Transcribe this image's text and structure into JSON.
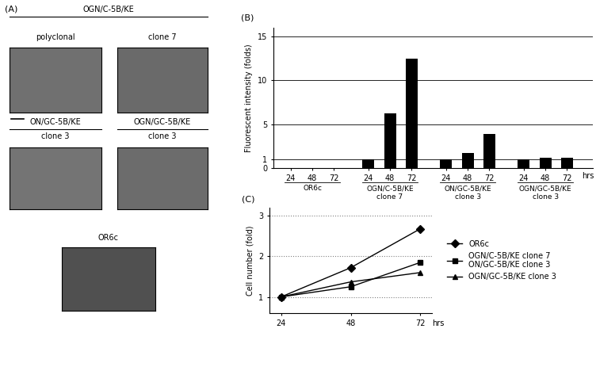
{
  "images": {
    "title": "(A)",
    "groups": [
      {
        "label": "OGN/C-5B/KE",
        "items": [
          "polyclonal",
          "clone 7"
        ]
      },
      {
        "label": "ON/GC-5B/KE",
        "items": [
          "clone 3"
        ]
      },
      {
        "label": "OGN/GC-5B/KE",
        "items": [
          "clone 3"
        ]
      },
      {
        "label": "OR6c",
        "items": []
      }
    ]
  },
  "chart_data": [
    {
      "type": "bar",
      "title": "(B)",
      "ylabel": "Fluorescent intensity (folds)",
      "xlabel": "hrs",
      "categories": [
        "24",
        "48",
        "72",
        "24",
        "48",
        "72",
        "24",
        "48",
        "72",
        "24",
        "48",
        "72"
      ],
      "groups": [
        "OR6c",
        "OGN/C-5B/KE\nclone 7",
        "ON/GC-5B/KE\nclone 3",
        "OGN/GC-5B/KE\nclone 3"
      ],
      "values": [
        0,
        0,
        0,
        1,
        6.2,
        12.5,
        1,
        1.7,
        3.9,
        1,
        1.2,
        1.2
      ],
      "color": "#000000",
      "ylim": [
        0,
        16
      ],
      "yticks": [
        0,
        1,
        5,
        10,
        15
      ],
      "grid": true
    },
    {
      "type": "line",
      "title": "(C)",
      "ylabel": "Cell number (fold)",
      "xlabel": "hrs",
      "x": [
        24,
        48,
        72
      ],
      "xlim": [
        20,
        76
      ],
      "xticks": [
        24,
        48,
        72
      ],
      "ylim": [
        0.6,
        3.2
      ],
      "yticks": [
        1,
        2,
        3
      ],
      "grid": true,
      "legend": "center left",
      "series": [
        {
          "name": "OR6c",
          "color": "#000000",
          "marker": "diamond",
          "values": [
            1,
            1.72,
            2.68
          ]
        },
        {
          "name": "OGN/C-5B/KE clone 7\nON/GC-5B/KE clone 3",
          "color": "#000000",
          "marker": "square",
          "values": [
            1,
            1.25,
            1.85
          ]
        },
        {
          "name": "OGN/GC-5B/KE clone 3",
          "color": "#000000",
          "marker": "triangle",
          "values": [
            1,
            1.37,
            1.6
          ]
        }
      ]
    }
  ]
}
